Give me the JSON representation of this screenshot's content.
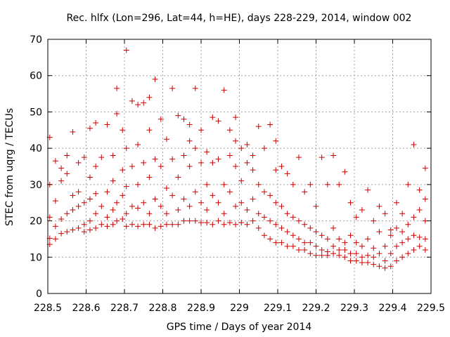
{
  "chart_data": {
    "type": "scatter",
    "title": "Rec. hlfx (Lon=296, Lat=44, h=HE), days 228-229, 2014, window 002",
    "xlabel": "GPS time / Days of year 2014",
    "ylabel": "STEC from uqrg / TECUs",
    "xlim": [
      228.5,
      229.5
    ],
    "ylim": [
      0,
      70
    ],
    "x_ticks": [
      "228.5",
      "228.6",
      "228.7",
      "228.8",
      "228.9",
      "229",
      "229.1",
      "229.2",
      "229.3",
      "229.4",
      "229.5"
    ],
    "x_tick_values": [
      228.5,
      228.6,
      228.7,
      228.8,
      228.9,
      229.0,
      229.1,
      229.2,
      229.3,
      229.4,
      229.5
    ],
    "y_ticks": [
      "0",
      "10",
      "20",
      "30",
      "40",
      "50",
      "60",
      "70"
    ],
    "y_tick_values": [
      0,
      10,
      20,
      30,
      40,
      50,
      60,
      70
    ],
    "grid": true,
    "marker": "+",
    "color": "#cc0000",
    "series": [
      {
        "points": [
          [
            228.505,
            13.5
          ],
          [
            228.505,
            15.2
          ],
          [
            228.505,
            21
          ],
          [
            228.505,
            30
          ],
          [
            228.505,
            43
          ],
          [
            228.52,
            15
          ],
          [
            228.52,
            18.5
          ],
          [
            228.52,
            25.5
          ],
          [
            228.52,
            36.5
          ],
          [
            228.535,
            16.5
          ],
          [
            228.535,
            20.5
          ],
          [
            228.535,
            31
          ],
          [
            228.535,
            34.5
          ],
          [
            228.55,
            17
          ],
          [
            228.55,
            22
          ],
          [
            228.55,
            33
          ],
          [
            228.55,
            38
          ],
          [
            228.565,
            17.5
          ],
          [
            228.565,
            23
          ],
          [
            228.565,
            27
          ],
          [
            228.565,
            44.5
          ],
          [
            228.58,
            18
          ],
          [
            228.58,
            24
          ],
          [
            228.58,
            28
          ],
          [
            228.58,
            36
          ],
          [
            228.595,
            17
          ],
          [
            228.595,
            19
          ],
          [
            228.595,
            25
          ],
          [
            228.595,
            37.5
          ],
          [
            228.61,
            17.5
          ],
          [
            228.61,
            20
          ],
          [
            228.61,
            26
          ],
          [
            228.61,
            32
          ],
          [
            228.61,
            45.5
          ],
          [
            228.625,
            18
          ],
          [
            228.625,
            22
          ],
          [
            228.625,
            27.5
          ],
          [
            228.625,
            35
          ],
          [
            228.625,
            47
          ],
          [
            228.64,
            19
          ],
          [
            228.64,
            24
          ],
          [
            228.64,
            37.5
          ],
          [
            228.655,
            18.5
          ],
          [
            228.655,
            21
          ],
          [
            228.655,
            28
          ],
          [
            228.655,
            46.5
          ],
          [
            228.67,
            19
          ],
          [
            228.67,
            23
          ],
          [
            228.67,
            31
          ],
          [
            228.67,
            38
          ],
          [
            228.68,
            20
          ],
          [
            228.68,
            25
          ],
          [
            228.68,
            49.5
          ],
          [
            228.68,
            56.5
          ],
          [
            228.695,
            20.5
          ],
          [
            228.695,
            27
          ],
          [
            228.695,
            34
          ],
          [
            228.695,
            45
          ],
          [
            228.705,
            18.5
          ],
          [
            228.705,
            22
          ],
          [
            228.705,
            29.5
          ],
          [
            228.705,
            40
          ],
          [
            228.705,
            67
          ],
          [
            228.72,
            19
          ],
          [
            228.72,
            24
          ],
          [
            228.72,
            35
          ],
          [
            228.72,
            53
          ],
          [
            228.735,
            18.5
          ],
          [
            228.735,
            23.5
          ],
          [
            228.735,
            30
          ],
          [
            228.735,
            41
          ],
          [
            228.735,
            52
          ],
          [
            228.75,
            19
          ],
          [
            228.75,
            25
          ],
          [
            228.75,
            36
          ],
          [
            228.75,
            52.5
          ],
          [
            228.765,
            19
          ],
          [
            228.765,
            22
          ],
          [
            228.765,
            32
          ],
          [
            228.765,
            45
          ],
          [
            228.765,
            54
          ],
          [
            228.78,
            18
          ],
          [
            228.78,
            26
          ],
          [
            228.78,
            37
          ],
          [
            228.78,
            59
          ],
          [
            228.795,
            18.5
          ],
          [
            228.795,
            24
          ],
          [
            228.795,
            35
          ],
          [
            228.795,
            48
          ],
          [
            228.81,
            19
          ],
          [
            228.81,
            22
          ],
          [
            228.81,
            29
          ],
          [
            228.81,
            42.5
          ],
          [
            228.825,
            19
          ],
          [
            228.825,
            27
          ],
          [
            228.825,
            37
          ],
          [
            228.825,
            56.5
          ],
          [
            228.84,
            19
          ],
          [
            228.84,
            23
          ],
          [
            228.84,
            32
          ],
          [
            228.84,
            49
          ],
          [
            228.855,
            20
          ],
          [
            228.855,
            26
          ],
          [
            228.855,
            38
          ],
          [
            228.855,
            48
          ],
          [
            228.87,
            20
          ],
          [
            228.87,
            24
          ],
          [
            228.87,
            35
          ],
          [
            228.87,
            42
          ],
          [
            228.87,
            46.5
          ],
          [
            228.885,
            20
          ],
          [
            228.885,
            28
          ],
          [
            228.885,
            40
          ],
          [
            228.885,
            56.5
          ],
          [
            228.9,
            19.5
          ],
          [
            228.9,
            25
          ],
          [
            228.9,
            36
          ],
          [
            228.9,
            45
          ],
          [
            228.915,
            19.5
          ],
          [
            228.915,
            23
          ],
          [
            228.915,
            30
          ],
          [
            228.915,
            39
          ],
          [
            228.93,
            19
          ],
          [
            228.93,
            27
          ],
          [
            228.93,
            36
          ],
          [
            228.93,
            48.5
          ],
          [
            228.945,
            20
          ],
          [
            228.945,
            25
          ],
          [
            228.945,
            37
          ],
          [
            228.945,
            47.5
          ],
          [
            228.96,
            19
          ],
          [
            228.96,
            22
          ],
          [
            228.96,
            30
          ],
          [
            228.96,
            56
          ],
          [
            228.975,
            19.5
          ],
          [
            228.975,
            28
          ],
          [
            228.975,
            38
          ],
          [
            228.975,
            45
          ],
          [
            228.99,
            19
          ],
          [
            228.99,
            24
          ],
          [
            228.99,
            35
          ],
          [
            228.99,
            42
          ],
          [
            228.99,
            48.5
          ],
          [
            229.005,
            19.5
          ],
          [
            229.005,
            25
          ],
          [
            229.005,
            31
          ],
          [
            229.005,
            40
          ],
          [
            229.02,
            19
          ],
          [
            229.02,
            23
          ],
          [
            229.02,
            36
          ],
          [
            229.02,
            41
          ],
          [
            229.035,
            20
          ],
          [
            229.035,
            26
          ],
          [
            229.035,
            34
          ],
          [
            229.035,
            38
          ],
          [
            229.05,
            18
          ],
          [
            229.05,
            22
          ],
          [
            229.05,
            30
          ],
          [
            229.05,
            46
          ],
          [
            229.065,
            16
          ],
          [
            229.065,
            21
          ],
          [
            229.065,
            28
          ],
          [
            229.065,
            40
          ],
          [
            229.08,
            15
          ],
          [
            229.08,
            20
          ],
          [
            229.08,
            27
          ],
          [
            229.08,
            46.5
          ],
          [
            229.095,
            14
          ],
          [
            229.095,
            19
          ],
          [
            229.095,
            25
          ],
          [
            229.095,
            34
          ],
          [
            229.095,
            42
          ],
          [
            229.11,
            14
          ],
          [
            229.11,
            18
          ],
          [
            229.11,
            24
          ],
          [
            229.11,
            35
          ],
          [
            229.125,
            13
          ],
          [
            229.125,
            17
          ],
          [
            229.125,
            22
          ],
          [
            229.125,
            33
          ],
          [
            229.14,
            13
          ],
          [
            229.14,
            16
          ],
          [
            229.14,
            21
          ],
          [
            229.14,
            30
          ],
          [
            229.155,
            12
          ],
          [
            229.155,
            15
          ],
          [
            229.155,
            20
          ],
          [
            229.155,
            37.5
          ],
          [
            229.17,
            12
          ],
          [
            229.17,
            14
          ],
          [
            229.17,
            19
          ],
          [
            229.17,
            28
          ],
          [
            229.185,
            11
          ],
          [
            229.185,
            14
          ],
          [
            229.185,
            18
          ],
          [
            229.185,
            30
          ],
          [
            229.2,
            10.5
          ],
          [
            229.2,
            13
          ],
          [
            229.2,
            17
          ],
          [
            229.2,
            24
          ],
          [
            229.215,
            10.5
          ],
          [
            229.215,
            12
          ],
          [
            229.215,
            16
          ],
          [
            229.215,
            37.5
          ],
          [
            229.23,
            10.5
          ],
          [
            229.23,
            11.5
          ],
          [
            229.23,
            15
          ],
          [
            229.23,
            30
          ],
          [
            229.245,
            11
          ],
          [
            229.245,
            13
          ],
          [
            229.245,
            18
          ],
          [
            229.245,
            38
          ],
          [
            229.26,
            10.5
          ],
          [
            229.26,
            12
          ],
          [
            229.26,
            15
          ],
          [
            229.26,
            30
          ],
          [
            229.275,
            10
          ],
          [
            229.275,
            12
          ],
          [
            229.275,
            14
          ],
          [
            229.275,
            33.5
          ],
          [
            229.29,
            9
          ],
          [
            229.29,
            11
          ],
          [
            229.29,
            16
          ],
          [
            229.29,
            25
          ],
          [
            229.305,
            9
          ],
          [
            229.305,
            11
          ],
          [
            229.305,
            14
          ],
          [
            229.305,
            21
          ],
          [
            229.32,
            8.5
          ],
          [
            229.32,
            10
          ],
          [
            229.32,
            13
          ],
          [
            229.32,
            23
          ],
          [
            229.335,
            8.5
          ],
          [
            229.335,
            10.5
          ],
          [
            229.335,
            15
          ],
          [
            229.335,
            28.5
          ],
          [
            229.35,
            8
          ],
          [
            229.35,
            10
          ],
          [
            229.35,
            12.5
          ],
          [
            229.35,
            20
          ],
          [
            229.365,
            7.5
          ],
          [
            229.365,
            11
          ],
          [
            229.365,
            17
          ],
          [
            229.365,
            24
          ],
          [
            229.38,
            7
          ],
          [
            229.38,
            9
          ],
          [
            229.38,
            13
          ],
          [
            229.38,
            22
          ],
          [
            229.395,
            7.5
          ],
          [
            229.395,
            11
          ],
          [
            229.395,
            16
          ],
          [
            229.395,
            17.5
          ],
          [
            229.41,
            9
          ],
          [
            229.41,
            13
          ],
          [
            229.41,
            18
          ],
          [
            229.41,
            25
          ],
          [
            229.425,
            10
          ],
          [
            229.425,
            14
          ],
          [
            229.425,
            17
          ],
          [
            229.425,
            22
          ],
          [
            229.44,
            11
          ],
          [
            229.44,
            15
          ],
          [
            229.44,
            19
          ],
          [
            229.44,
            30
          ],
          [
            229.455,
            12
          ],
          [
            229.455,
            16
          ],
          [
            229.455,
            21
          ],
          [
            229.455,
            41
          ],
          [
            229.47,
            13
          ],
          [
            229.47,
            15.5
          ],
          [
            229.47,
            23
          ],
          [
            229.47,
            28.5
          ],
          [
            229.485,
            12
          ],
          [
            229.485,
            15
          ],
          [
            229.485,
            20
          ],
          [
            229.485,
            26
          ],
          [
            229.485,
            34.5
          ]
        ]
      }
    ]
  }
}
